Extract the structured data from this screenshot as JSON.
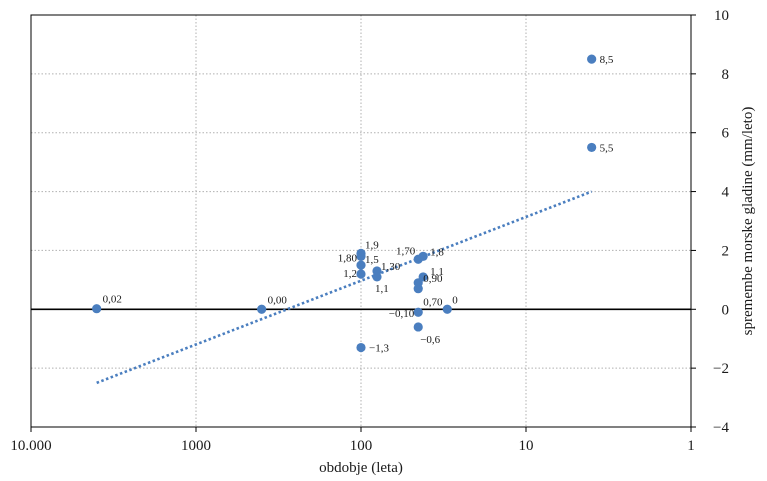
{
  "chart_data": {
    "type": "scatter",
    "xlabel": "obdobje (leta)",
    "ylabel": "spremembe morske gladine (mm/leto)",
    "x_scale": "log",
    "x_reversed": true,
    "xlim": [
      10000,
      1
    ],
    "ylim": [
      -4,
      10
    ],
    "x_ticks": [
      10000,
      1000,
      100,
      10,
      1
    ],
    "x_tick_labels": [
      "10.000",
      "1000",
      "100",
      "10",
      "1"
    ],
    "y_ticks": [
      -4,
      -2,
      0,
      2,
      4,
      6,
      8,
      10
    ],
    "y_tick_labels": [
      "−4",
      "−2",
      "0",
      "2",
      "4",
      "6",
      "8",
      "10"
    ],
    "y_axis_side": "right",
    "grid": true,
    "zero_line": true,
    "colors": {
      "points": "#4a7ebf",
      "trend": "#4a7ebf",
      "grid": "#b0b0b0",
      "zero_line": "#000000"
    },
    "points": [
      {
        "x": 4000,
        "y": 0.02,
        "label": "0,02"
      },
      {
        "x": 400,
        "y": 0.0,
        "label": "0,00"
      },
      {
        "x": 100,
        "y": 1.9,
        "label": "1,9"
      },
      {
        "x": 100,
        "y": 1.8,
        "label": "1,80"
      },
      {
        "x": 100,
        "y": 1.5,
        "label": "1,5"
      },
      {
        "x": 100,
        "y": 1.2,
        "label": "1,2"
      },
      {
        "x": 80,
        "y": 1.3,
        "label": "1,30"
      },
      {
        "x": 80,
        "y": 1.1,
        "label": "1,1"
      },
      {
        "x": 100,
        "y": -1.3,
        "label": "−1,3"
      },
      {
        "x": 45,
        "y": 1.7,
        "label": "1,70"
      },
      {
        "x": 42,
        "y": 1.8,
        "label": "1,8"
      },
      {
        "x": 42,
        "y": 1.1,
        "label": "1,1"
      },
      {
        "x": 45,
        "y": 0.9,
        "label": "0,90"
      },
      {
        "x": 45,
        "y": 0.7,
        "label": "0,70"
      },
      {
        "x": 45,
        "y": -0.1,
        "label": "−0,10"
      },
      {
        "x": 45,
        "y": -0.6,
        "label": "−0,6"
      },
      {
        "x": 30,
        "y": 0.0,
        "label": "0"
      },
      {
        "x": 4,
        "y": 8.5,
        "label": "8,5"
      },
      {
        "x": 4,
        "y": 5.5,
        "label": "5,5"
      }
    ],
    "trendline": {
      "style": "dotted",
      "x": [
        4000,
        4
      ],
      "y": [
        -2.5,
        4.0
      ]
    }
  }
}
